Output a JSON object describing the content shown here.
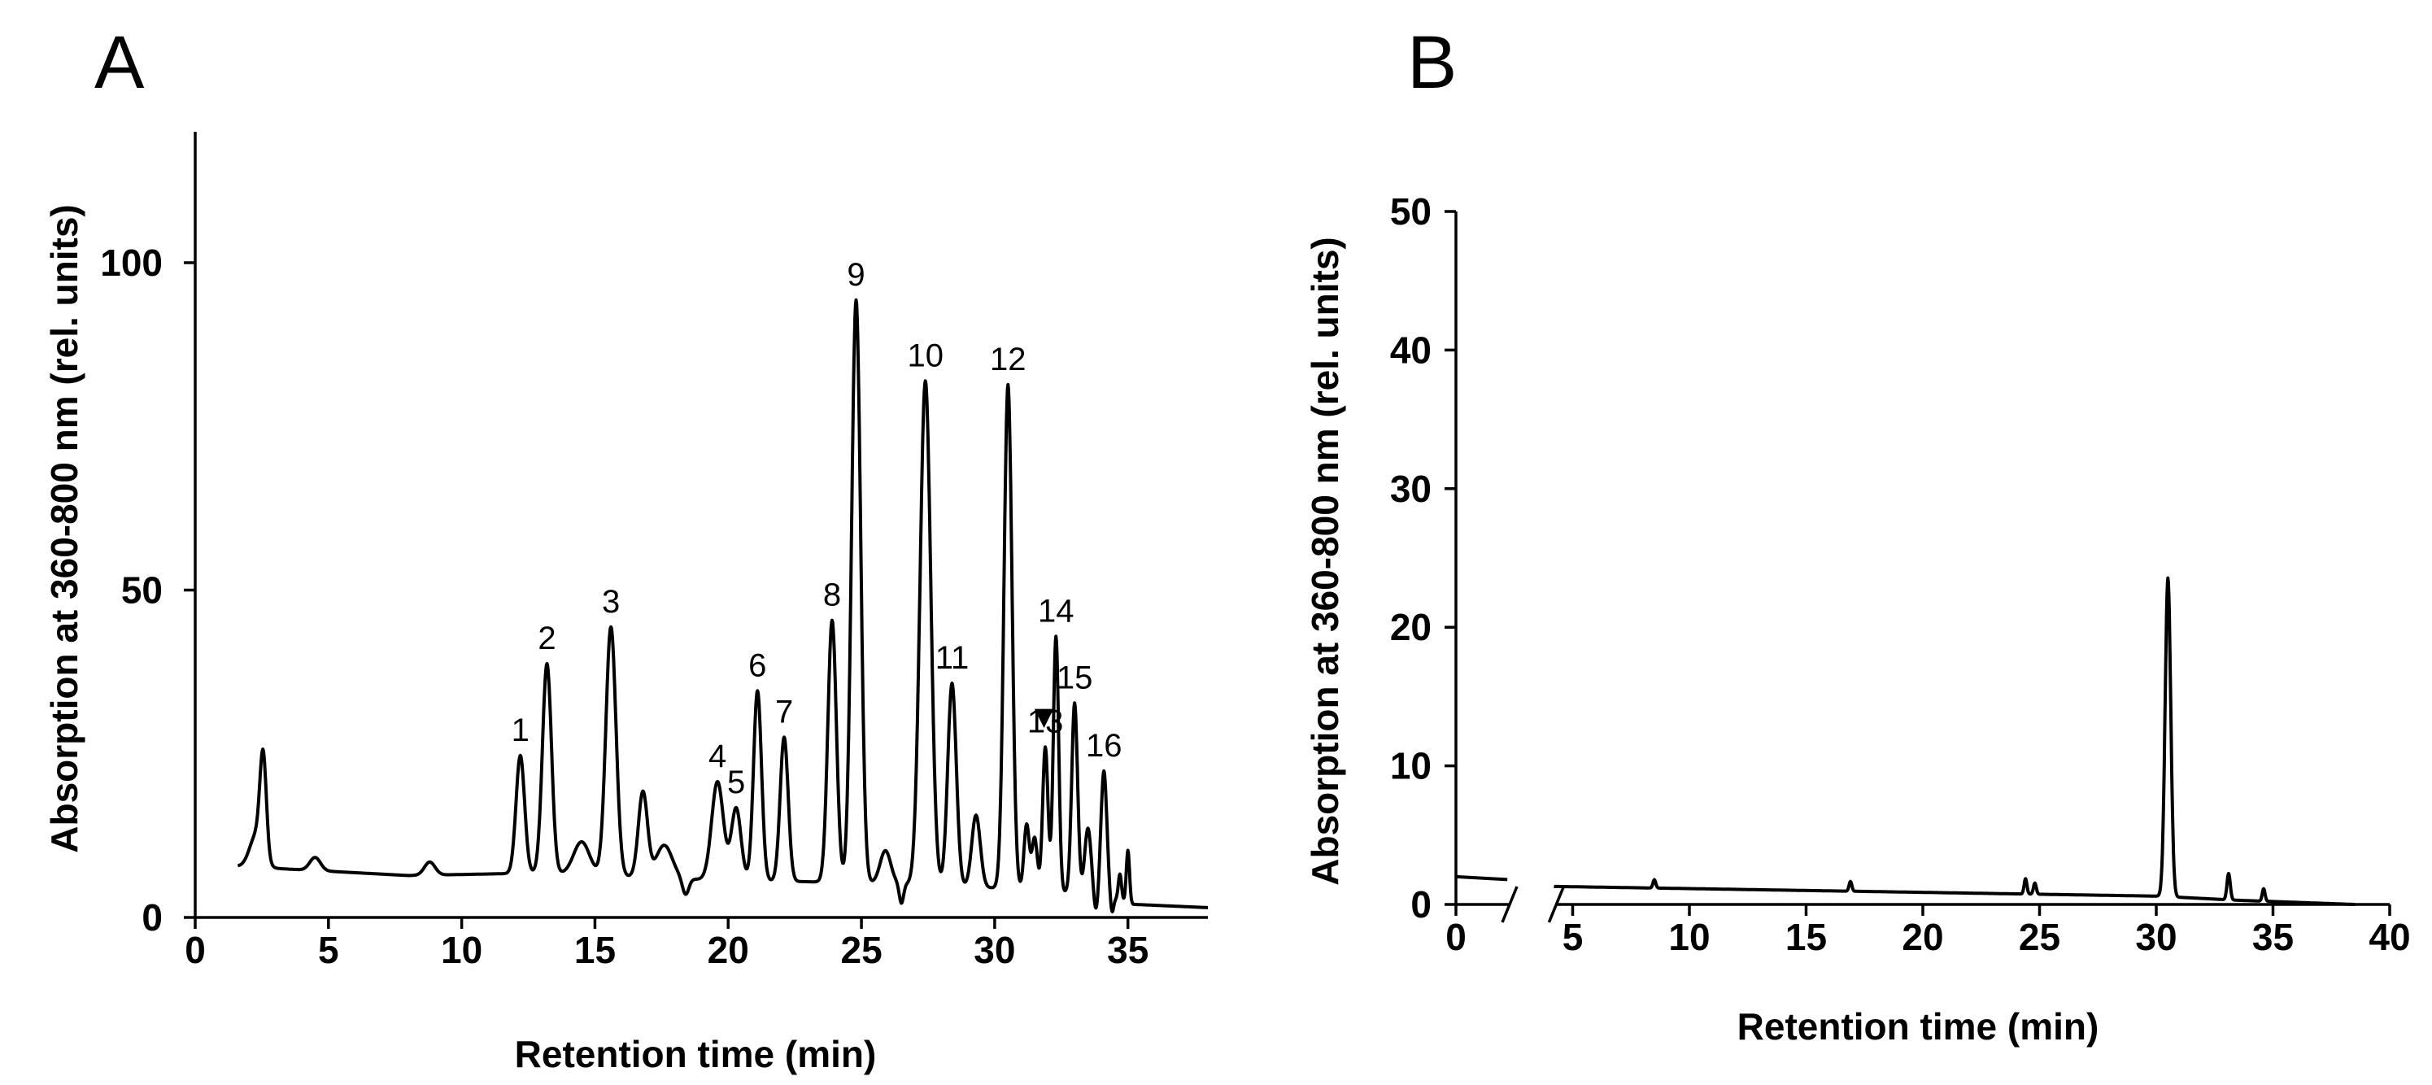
{
  "chart_data": [
    {
      "type": "line",
      "panel": "A",
      "xlabel": "Retention time (min)",
      "ylabel": "Absorption at 360-800 nm (rel. units)",
      "xlim": [
        0,
        38
      ],
      "ylim": [
        0,
        120
      ],
      "xticks": [
        0,
        5,
        10,
        15,
        20,
        25,
        30,
        35
      ],
      "yticks": [
        0,
        50,
        100
      ],
      "baseline": [
        [
          1.6,
          7.8
        ],
        [
          8,
          6.4
        ],
        [
          13,
          6.8
        ],
        [
          19,
          5.8
        ],
        [
          26,
          5.2
        ],
        [
          30,
          4.5
        ],
        [
          34,
          3.5
        ],
        [
          35.2,
          2
        ],
        [
          38,
          1.5
        ]
      ],
      "peaks": [
        {
          "x": 2.3,
          "h": 5,
          "w": 0.25
        },
        {
          "x": 2.55,
          "h": 15,
          "w": 0.12
        },
        {
          "x": 4.5,
          "h": 2,
          "w": 0.2
        },
        {
          "x": 8.8,
          "h": 2,
          "w": 0.2
        },
        {
          "x": 12.2,
          "h": 18,
          "w": 0.16,
          "label": "1"
        },
        {
          "x": 13.2,
          "h": 32,
          "w": 0.17,
          "label": "2"
        },
        {
          "x": 14.5,
          "h": 5,
          "w": 0.3
        },
        {
          "x": 15.6,
          "h": 38,
          "w": 0.19,
          "label": "3"
        },
        {
          "x": 16.8,
          "h": 13,
          "w": 0.17
        },
        {
          "x": 17.6,
          "h": 5,
          "w": 0.3
        },
        {
          "x": 19.6,
          "h": 15,
          "w": 0.22,
          "label": "4"
        },
        {
          "x": 20.3,
          "h": 11,
          "w": 0.18,
          "label": "5"
        },
        {
          "x": 21.1,
          "h": 29,
          "w": 0.15,
          "label": "6"
        },
        {
          "x": 22.1,
          "h": 22,
          "w": 0.15,
          "label": "7"
        },
        {
          "x": 23.9,
          "h": 40,
          "w": 0.16,
          "label": "8"
        },
        {
          "x": 24.8,
          "h": 89,
          "w": 0.17,
          "label": "9"
        },
        {
          "x": 25.9,
          "h": 5,
          "w": 0.2
        },
        {
          "x": 27.4,
          "h": 77,
          "w": 0.2,
          "label": "10"
        },
        {
          "x": 28.4,
          "h": 31,
          "w": 0.16,
          "label": "11"
        },
        {
          "x": 29.3,
          "h": 11,
          "w": 0.16
        },
        {
          "x": 30.5,
          "h": 77,
          "w": 0.15,
          "label": "12"
        },
        {
          "x": 31.2,
          "h": 10,
          "w": 0.1
        },
        {
          "x": 31.5,
          "h": 8,
          "w": 0.1
        },
        {
          "x": 31.9,
          "h": 22,
          "w": 0.1,
          "label": "13"
        },
        {
          "x": 32.3,
          "h": 39,
          "w": 0.1,
          "label": "14"
        },
        {
          "x": 33.0,
          "h": 29,
          "w": 0.11,
          "label": "15"
        },
        {
          "x": 33.5,
          "h": 10,
          "w": 0.12
        },
        {
          "x": 34.1,
          "h": 19,
          "w": 0.11,
          "label": "16"
        },
        {
          "x": 34.7,
          "h": 4,
          "w": 0.06
        },
        {
          "x": 35.0,
          "h": 8,
          "w": 0.06
        }
      ],
      "dips": [
        {
          "x": 18.4,
          "h": -2.5,
          "w": 0.12
        },
        {
          "x": 26.5,
          "h": -3,
          "w": 0.08
        },
        {
          "x": 33.8,
          "h": -3,
          "w": 0.08
        },
        {
          "x": 34.4,
          "h": -2.5,
          "w": 0.06
        }
      ],
      "markers": [
        {
          "x": 31.85,
          "y": 29,
          "label": "▼"
        }
      ]
    },
    {
      "type": "line",
      "panel": "B",
      "xlabel": "Retention time (min)",
      "ylabel": "Absorption at 360-800 nm (rel. units)",
      "xlim": [
        0,
        40
      ],
      "ylim": [
        0,
        50
      ],
      "xticks": [
        0,
        5,
        10,
        15,
        20,
        25,
        30,
        35,
        40
      ],
      "yticks": [
        0,
        10,
        20,
        30,
        40,
        50
      ],
      "axis_break": [
        2.3,
        4.3
      ],
      "pre_break_segment": [
        [
          0,
          2.0
        ],
        [
          2.2,
          1.8
        ]
      ],
      "baseline": [
        [
          4.2,
          1.3
        ],
        [
          30,
          0.6
        ],
        [
          33.5,
          0.3
        ],
        [
          38.5,
          0.0
        ]
      ],
      "peaks": [
        {
          "x": 8.5,
          "h": 0.6,
          "w": 0.06
        },
        {
          "x": 16.9,
          "h": 0.7,
          "w": 0.06
        },
        {
          "x": 24.4,
          "h": 1.1,
          "w": 0.06
        },
        {
          "x": 24.8,
          "h": 0.8,
          "w": 0.06
        },
        {
          "x": 30.5,
          "h": 23,
          "w": 0.12
        },
        {
          "x": 33.1,
          "h": 1.9,
          "w": 0.07
        },
        {
          "x": 34.6,
          "h": 0.9,
          "w": 0.06
        }
      ]
    }
  ]
}
